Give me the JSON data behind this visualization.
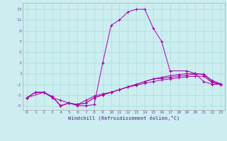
{
  "xlabel": "Windchill (Refroidissement éolien,°C)",
  "background_color": "#cceef0",
  "grid_color": "#aadddd",
  "line_color": "#aa00aa",
  "xlim": [
    -0.5,
    23.5
  ],
  "ylim": [
    -5.8,
    14.2
  ],
  "xticks": [
    0,
    1,
    2,
    3,
    4,
    5,
    6,
    7,
    8,
    9,
    10,
    11,
    12,
    13,
    14,
    15,
    16,
    17,
    18,
    19,
    20,
    21,
    22,
    23
  ],
  "yticks": [
    -5,
    -3,
    -1,
    1,
    3,
    5,
    7,
    9,
    11,
    13
  ],
  "curve1_x": [
    0,
    2,
    3,
    4,
    5,
    6,
    7,
    8,
    9,
    10,
    11,
    12,
    13,
    14,
    15,
    16,
    17,
    19,
    20,
    21,
    22,
    23
  ],
  "curve1_y": [
    -3.5,
    -2.5,
    -3.5,
    -4,
    -4.5,
    -5,
    -5,
    -4.8,
    3,
    10,
    11,
    12.5,
    13,
    13,
    9.5,
    7,
    1.5,
    1.5,
    1,
    -0.5,
    -1.0,
    -1.0
  ],
  "curve2_x": [
    0,
    1,
    2,
    3,
    4,
    5,
    6,
    7,
    8,
    9,
    10,
    11,
    12,
    13,
    14,
    15,
    16,
    17,
    18,
    19,
    20,
    21,
    22,
    23
  ],
  "curve2_y": [
    -3.5,
    -2.5,
    -2.5,
    -3.3,
    -5,
    -4.5,
    -4.8,
    -4.5,
    -3.5,
    -3.0,
    -2.5,
    -2,
    -1.5,
    -1,
    -0.5,
    0,
    0.3,
    0.6,
    0.8,
    1.0,
    1.0,
    0.8,
    -0.5,
    -1.0
  ],
  "curve3_x": [
    0,
    1,
    2,
    3,
    4,
    5,
    6,
    7,
    8,
    9,
    10,
    11,
    12,
    13,
    14,
    15,
    16,
    17,
    18,
    19,
    20,
    21,
    22,
    23
  ],
  "curve3_y": [
    -3.5,
    -2.5,
    -2.5,
    -3.3,
    -5,
    -4.5,
    -4.8,
    -4,
    -3.2,
    -2.8,
    -2.5,
    -2,
    -1.5,
    -1.2,
    -0.8,
    -0.5,
    -0.2,
    0.0,
    0.2,
    0.4,
    0.5,
    0.5,
    -0.7,
    -1.0
  ],
  "curve4_x": [
    0,
    1,
    2,
    3,
    4,
    5,
    6,
    7,
    8,
    9,
    10,
    11,
    12,
    13,
    14,
    15,
    16,
    17,
    18,
    19,
    20,
    21,
    22,
    23
  ],
  "curve4_y": [
    -3.5,
    -2.5,
    -2.5,
    -3.3,
    -5,
    -4.5,
    -4.8,
    -4.5,
    -3.5,
    -3.0,
    -2.5,
    -2,
    -1.5,
    -1.0,
    -0.5,
    0.0,
    0.1,
    0.3,
    0.5,
    0.7,
    0.9,
    0.9,
    -0.3,
    -0.9
  ]
}
